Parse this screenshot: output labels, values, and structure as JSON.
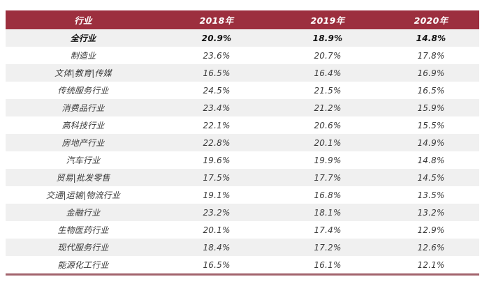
{
  "table": {
    "columns": [
      "行业",
      "2018年",
      "2019年",
      "2020年"
    ],
    "rows": [
      {
        "label": "全行业",
        "values": [
          "20.9%",
          "18.9%",
          "14.8%"
        ],
        "emphasis": true
      },
      {
        "label": "制造业",
        "values": [
          "23.6%",
          "20.7%",
          "17.8%"
        ],
        "emphasis": false
      },
      {
        "label": "文体|教育|传媒",
        "values": [
          "16.5%",
          "16.4%",
          "16.9%"
        ],
        "emphasis": false
      },
      {
        "label": "传统服务行业",
        "values": [
          "24.5%",
          "21.5%",
          "16.5%"
        ],
        "emphasis": false
      },
      {
        "label": "消费品行业",
        "values": [
          "23.4%",
          "21.2%",
          "15.9%"
        ],
        "emphasis": false
      },
      {
        "label": "高科技行业",
        "values": [
          "22.1%",
          "20.6%",
          "15.5%"
        ],
        "emphasis": false
      },
      {
        "label": "房地产行业",
        "values": [
          "22.8%",
          "20.1%",
          "14.9%"
        ],
        "emphasis": false
      },
      {
        "label": "汽车行业",
        "values": [
          "19.6%",
          "19.9%",
          "14.8%"
        ],
        "emphasis": false
      },
      {
        "label": "贸易|批发零售",
        "values": [
          "17.5%",
          "17.7%",
          "14.5%"
        ],
        "emphasis": false
      },
      {
        "label": "交通|运输|物流行业",
        "values": [
          "19.1%",
          "16.8%",
          "13.5%"
        ],
        "emphasis": false
      },
      {
        "label": "金融行业",
        "values": [
          "23.2%",
          "18.1%",
          "13.2%"
        ],
        "emphasis": false
      },
      {
        "label": "生物医药行业",
        "values": [
          "20.1%",
          "17.4%",
          "12.9%"
        ],
        "emphasis": false
      },
      {
        "label": "现代服务行业",
        "values": [
          "18.4%",
          "17.2%",
          "12.6%"
        ],
        "emphasis": false
      },
      {
        "label": "能源化工行业",
        "values": [
          "16.5%",
          "16.1%",
          "12.1%"
        ],
        "emphasis": false
      }
    ]
  },
  "colors": {
    "header_bg": "#9c2f3e",
    "header_text": "#ffffff",
    "row_alt_bg": "#f0f0f0",
    "row_bg": "#ffffff",
    "body_text": "#3a3a3a",
    "emphasis_text": "#111111",
    "border_bottom": "#a2636c"
  },
  "chart_data": {
    "type": "table",
    "title": "",
    "columns": [
      "行业",
      "2018年",
      "2019年",
      "2020年"
    ],
    "categories": [
      "2018年",
      "2019年",
      "2020年"
    ],
    "units": "%",
    "series": [
      {
        "name": "全行业",
        "values": [
          20.9,
          18.9,
          14.8
        ]
      },
      {
        "name": "制造业",
        "values": [
          23.6,
          20.7,
          17.8
        ]
      },
      {
        "name": "文体|教育|传媒",
        "values": [
          16.5,
          16.4,
          16.9
        ]
      },
      {
        "name": "传统服务行业",
        "values": [
          24.5,
          21.5,
          16.5
        ]
      },
      {
        "name": "消费品行业",
        "values": [
          23.4,
          21.2,
          15.9
        ]
      },
      {
        "name": "高科技行业",
        "values": [
          22.1,
          20.6,
          15.5
        ]
      },
      {
        "name": "房地产行业",
        "values": [
          22.8,
          20.1,
          14.9
        ]
      },
      {
        "name": "汽车行业",
        "values": [
          19.6,
          19.9,
          14.8
        ]
      },
      {
        "name": "贸易|批发零售",
        "values": [
          17.5,
          17.7,
          14.5
        ]
      },
      {
        "name": "交通|运输|物流行业",
        "values": [
          19.1,
          16.8,
          13.5
        ]
      },
      {
        "name": "金融行业",
        "values": [
          23.2,
          18.1,
          13.2
        ]
      },
      {
        "name": "生物医药行业",
        "values": [
          20.1,
          17.4,
          12.9
        ]
      },
      {
        "name": "现代服务行业",
        "values": [
          18.4,
          17.2,
          12.6
        ]
      },
      {
        "name": "能源化工行业",
        "values": [
          16.5,
          16.1,
          12.1
        ]
      }
    ]
  }
}
